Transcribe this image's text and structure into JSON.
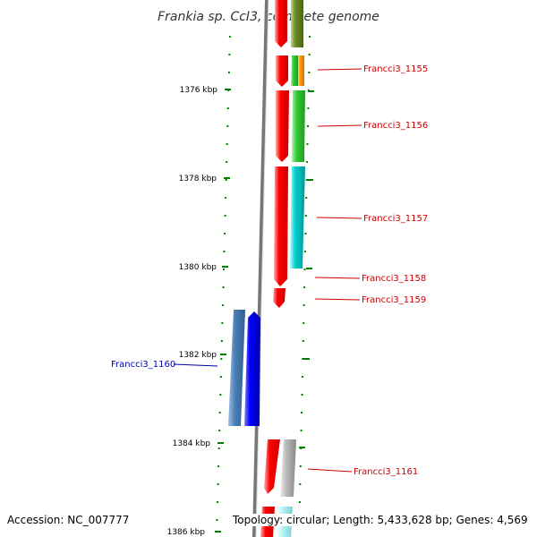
{
  "title": "Frankia sp. CcI3, complete genome",
  "footer": {
    "accession": "Accession: NC_007777",
    "topology": "Topology: circular; Length: 5,433,628 bp; Genes: 4,569"
  },
  "axis": {
    "ticks": [
      "1376 kbp",
      "1378 kbp",
      "1380 kbp",
      "1382 kbp",
      "1384 kbp",
      "1386 kbp"
    ]
  },
  "genes": [
    {
      "label": "Francci3_1155",
      "color": "#cc0000"
    },
    {
      "label": "Francci3_1156",
      "color": "#cc0000"
    },
    {
      "label": "Francci3_1157",
      "color": "#cc0000"
    },
    {
      "label": "Francci3_1158",
      "color": "#cc0000"
    },
    {
      "label": "Francci3_1159",
      "color": "#cc0000"
    },
    {
      "label": "Francci3_1160",
      "color": "#0000aa"
    },
    {
      "label": "Francci3_1161",
      "color": "#cc0000"
    }
  ],
  "colors": {
    "cds": "#ff0000",
    "cds_minus": "#0000ff",
    "olive": "#6b8e23",
    "orange": "#ff9900",
    "green": "#33cc33",
    "cyan": "#00cccc",
    "steelblue": "#4a7fb5",
    "grey": "#b0b0b0",
    "lightcyan": "#b0f0f0",
    "tick": "#008000",
    "backbone": "#777777"
  }
}
